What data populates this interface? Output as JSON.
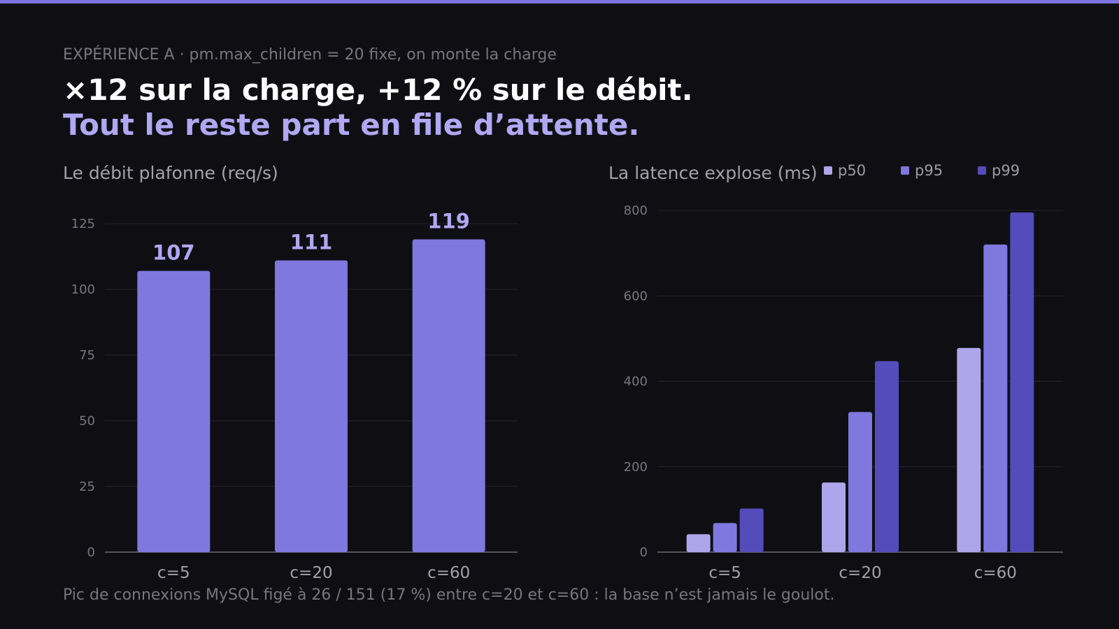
{
  "kicker": "EXPÉRIENCE A · pm.max_children = 20 fixe, on monte la charge",
  "headline": "×12 sur la charge, +12 % sur le débit.",
  "subheadline": "Tout le reste part en file d’attente.",
  "footnote": "Pic de connexions MySQL figé à 26 / 151 (17 %) entre c=20 et c=60 : la base n’est jamais le goulot.",
  "colors": {
    "accent": "#7c72e0",
    "bar": "#7f78df",
    "p50": "#aea6eb",
    "p95": "#7f78df",
    "p99": "#544cbb",
    "value_label": "#b1a7f2"
  },
  "chart_data": [
    {
      "type": "bar",
      "title": "Le débit plafonne (req/s)",
      "categories": [
        "c=5",
        "c=20",
        "c=60"
      ],
      "values": [
        107,
        111,
        119
      ],
      "value_labels": [
        "107",
        "111",
        "119"
      ],
      "ylim": [
        0,
        125
      ],
      "yticks": [
        0,
        25,
        50,
        75,
        100,
        125
      ],
      "grid": true,
      "legend": "none"
    },
    {
      "type": "bar",
      "title": "La latence explose (ms)",
      "categories": [
        "c=5",
        "c=20",
        "c=60"
      ],
      "series": [
        {
          "name": "p50",
          "values": [
            42,
            163,
            478
          ]
        },
        {
          "name": "p95",
          "values": [
            68,
            328,
            720
          ]
        },
        {
          "name": "p99",
          "values": [
            102,
            447,
            795
          ]
        }
      ],
      "ylim": [
        0,
        800
      ],
      "yticks": [
        0,
        200,
        400,
        600,
        800
      ],
      "grid": true,
      "legend": "top-right"
    }
  ]
}
